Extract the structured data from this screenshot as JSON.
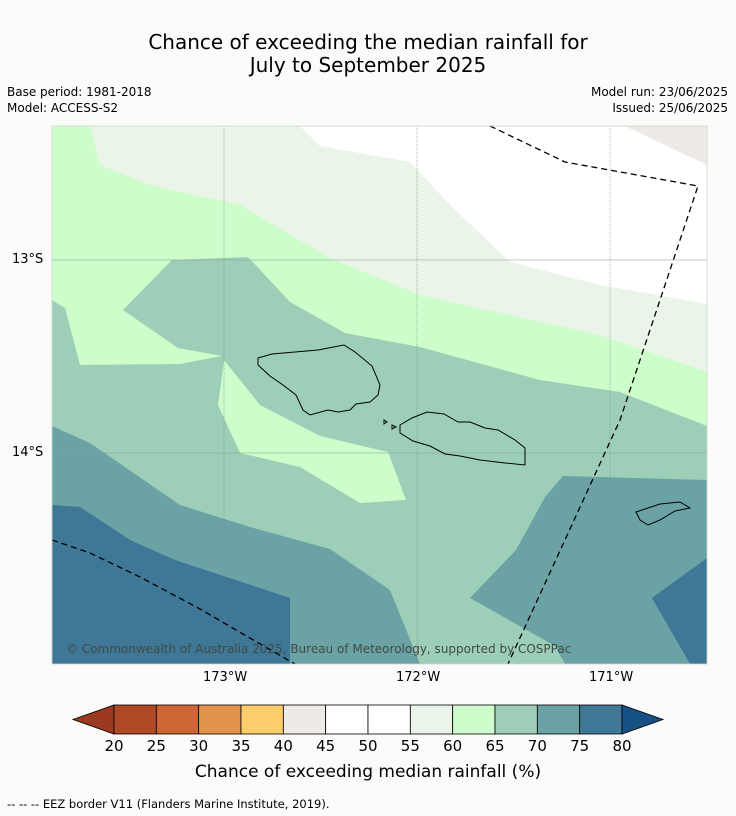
{
  "title_line1": "Chance of exceeding the median rainfall for",
  "title_line2": "July to September 2025",
  "meta_left": {
    "base_period": "Base period: 1981-2018",
    "model": "Model: ACCESS-S2"
  },
  "meta_right": {
    "model_run": "Model run: 23/06/2025",
    "issued": "Issued: 25/06/2025"
  },
  "map": {
    "lat_labels": [
      "13°S",
      "14°S"
    ],
    "lon_labels": [
      "173°W",
      "172°W",
      "171°W"
    ],
    "copyright": "© Commonwealth of Australia 2025, Bureau of Meteorology, supported by COSPPac"
  },
  "colorbar": {
    "ticks": [
      "20",
      "25",
      "30",
      "35",
      "40",
      "45",
      "50",
      "55",
      "60",
      "65",
      "70",
      "75",
      "80"
    ],
    "colors": [
      "#b04a26",
      "#cd6632",
      "#e2954a",
      "#fccd6a",
      "#eeebe6",
      "#ffffff",
      "#fefffe",
      "#eaf4e8",
      "#ccfdca",
      "#9dcfb8",
      "#6ba2a5",
      "#3f7797"
    ],
    "under_color": "#9b3a20",
    "over_color": "#175183",
    "label": "Chance of exceeding median rainfall (%)"
  },
  "legend_footnote": "--  --  -- EEZ border V11 (Flanders Marine Institute, 2019)."
}
